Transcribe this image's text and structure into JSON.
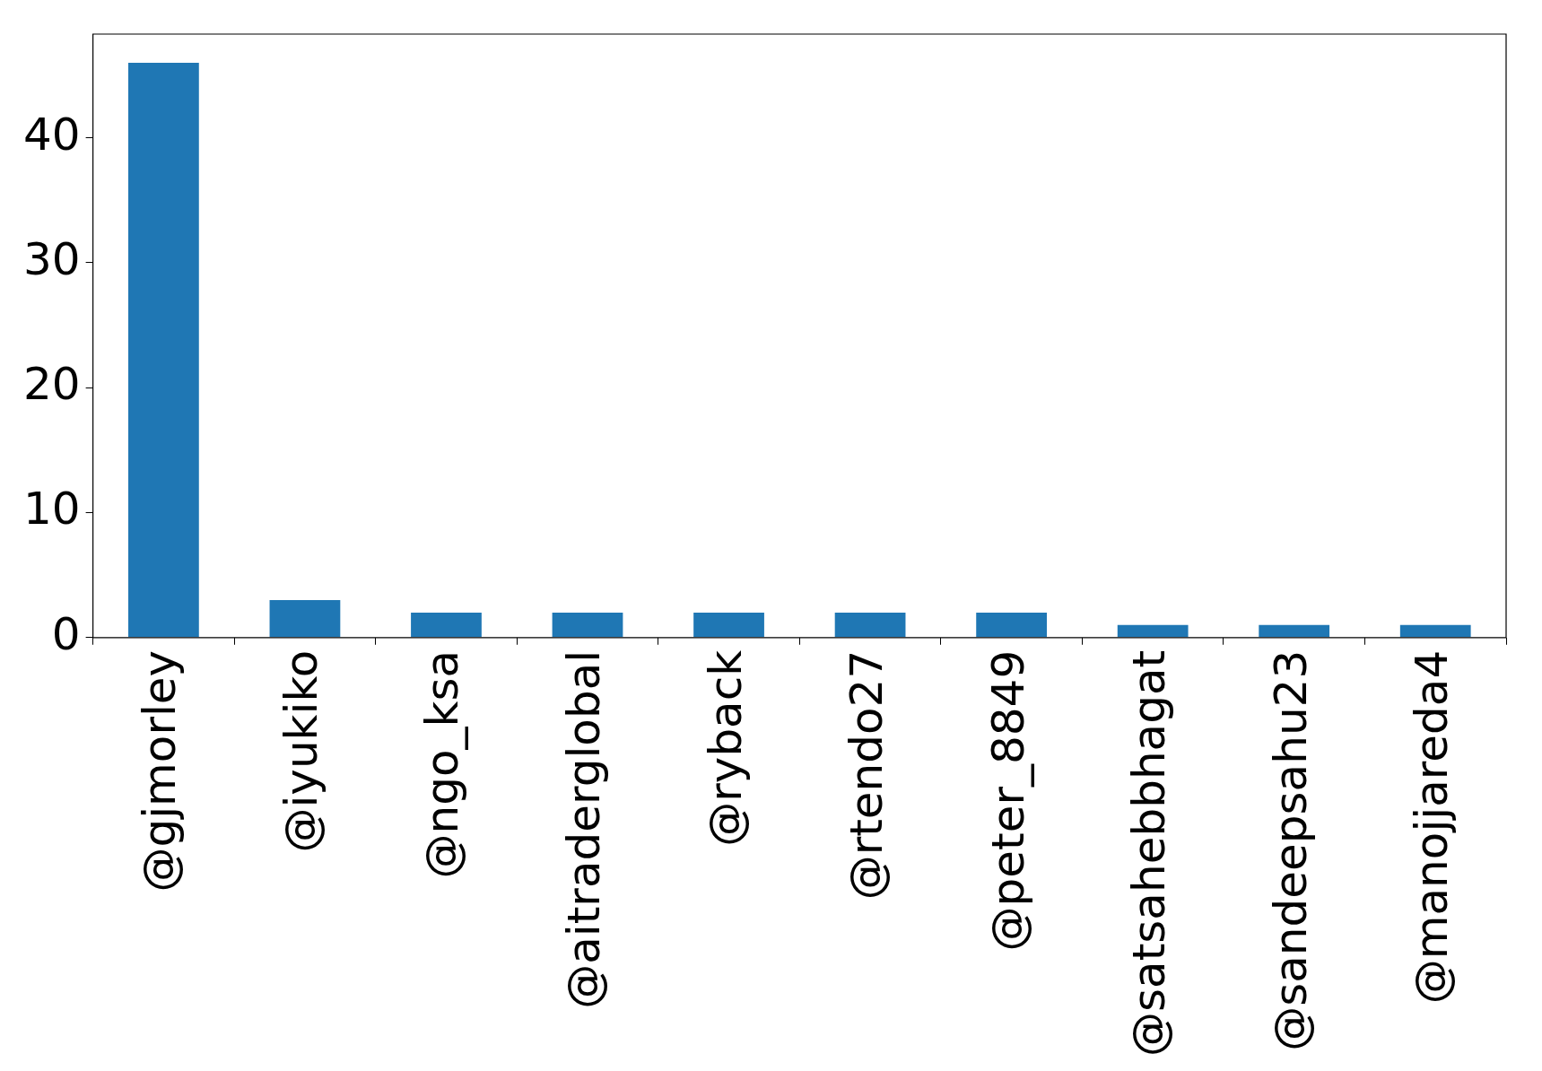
{
  "chart_data": {
    "type": "bar",
    "categories": [
      "@gjmorley",
      "@iyukiko",
      "@ngo_ksa",
      "@aitraderglobal",
      "@ryback",
      "@rtendo27",
      "@peter_8849",
      "@satsahebbhagat",
      "@sandeepsahu23",
      "@manojjareda4"
    ],
    "values": [
      46,
      3,
      2,
      2,
      2,
      2,
      2,
      1,
      1,
      1
    ],
    "color": "#1f77b4",
    "ylim": [
      0,
      48.3
    ],
    "yticks": [
      0,
      10,
      20,
      30,
      40
    ],
    "grid": false,
    "legend": false
  }
}
